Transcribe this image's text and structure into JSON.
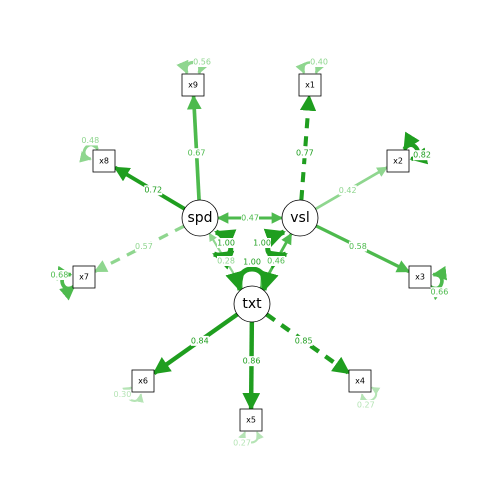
{
  "colors": {
    "dark": "#1f9e1f",
    "mid": "#4dba4d",
    "light": "#8fd68f",
    "pale": "#b5e4b5",
    "background": "#ffffff"
  },
  "latent_nodes": [
    {
      "id": "spd",
      "label": "spd"
    },
    {
      "id": "vsl",
      "label": "vsl"
    },
    {
      "id": "txt",
      "label": "txt"
    }
  ],
  "manifest_nodes": [
    {
      "id": "x1",
      "label": "x1"
    },
    {
      "id": "x2",
      "label": "x2"
    },
    {
      "id": "x3",
      "label": "x3"
    },
    {
      "id": "x4",
      "label": "x4"
    },
    {
      "id": "x5",
      "label": "x5"
    },
    {
      "id": "x6",
      "label": "x6"
    },
    {
      "id": "x7",
      "label": "x7"
    },
    {
      "id": "x8",
      "label": "x8"
    },
    {
      "id": "x9",
      "label": "x9"
    }
  ],
  "loadings": [
    {
      "from": "vsl",
      "to": "x1",
      "value": "0.77",
      "dashed": true,
      "tone": "dark"
    },
    {
      "from": "vsl",
      "to": "x2",
      "value": "0.42",
      "dashed": false,
      "tone": "light"
    },
    {
      "from": "vsl",
      "to": "x3",
      "value": "0.58",
      "dashed": false,
      "tone": "mid"
    },
    {
      "from": "txt",
      "to": "x4",
      "value": "0.85",
      "dashed": true,
      "tone": "dark"
    },
    {
      "from": "txt",
      "to": "x5",
      "value": "0.86",
      "dashed": false,
      "tone": "dark"
    },
    {
      "from": "txt",
      "to": "x6",
      "value": "0.84",
      "dashed": false,
      "tone": "dark"
    },
    {
      "from": "spd",
      "to": "x7",
      "value": "0.57",
      "dashed": true,
      "tone": "light"
    },
    {
      "from": "spd",
      "to": "x8",
      "value": "0.72",
      "dashed": false,
      "tone": "dark"
    },
    {
      "from": "spd",
      "to": "x9",
      "value": "0.67",
      "dashed": false,
      "tone": "mid"
    }
  ],
  "covariances": [
    {
      "a": "spd",
      "b": "vsl",
      "value": "0.47",
      "tone": "mid"
    },
    {
      "a": "spd",
      "b": "txt",
      "value": "0.28",
      "tone": "light"
    },
    {
      "a": "vsl",
      "b": "txt",
      "value": "0.46",
      "tone": "mid"
    }
  ],
  "latent_variances": [
    {
      "node": "spd",
      "value": "1.00"
    },
    {
      "node": "vsl",
      "value": "1.00"
    },
    {
      "node": "txt",
      "value": "1.00"
    }
  ],
  "residual_variances": [
    {
      "node": "x1",
      "value": "0.40",
      "tone": "light"
    },
    {
      "node": "x2",
      "value": "0.82",
      "tone": "dark"
    },
    {
      "node": "x3",
      "value": "0.66",
      "tone": "mid"
    },
    {
      "node": "x4",
      "value": "0.27",
      "tone": "pale"
    },
    {
      "node": "x5",
      "value": "0.27",
      "tone": "pale"
    },
    {
      "node": "x6",
      "value": "0.30",
      "tone": "pale"
    },
    {
      "node": "x7",
      "value": "0.68",
      "tone": "mid"
    },
    {
      "node": "x8",
      "value": "0.48",
      "tone": "light"
    },
    {
      "node": "x9",
      "value": "0.56",
      "tone": "light"
    }
  ]
}
